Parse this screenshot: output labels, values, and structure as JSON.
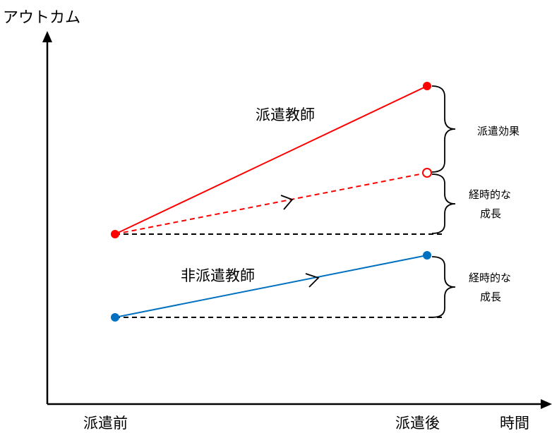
{
  "axes": {
    "y_label": "アウトカム",
    "x_label": "時間",
    "x_ticks": [
      "派遣前",
      "派遣後"
    ]
  },
  "series": {
    "dispatched": {
      "label": "派遣教師",
      "color": "#ff0000"
    },
    "non_dispatched": {
      "label": "非派遣教師",
      "color": "#0070c0"
    }
  },
  "annotations": {
    "dispatch_effect": "派遣効果",
    "growth_red": [
      "経時的な",
      "成長"
    ],
    "growth_blue": [
      "経時的な",
      "成長"
    ]
  },
  "colors": {
    "axis": "#000000",
    "baseline": "#000000"
  }
}
